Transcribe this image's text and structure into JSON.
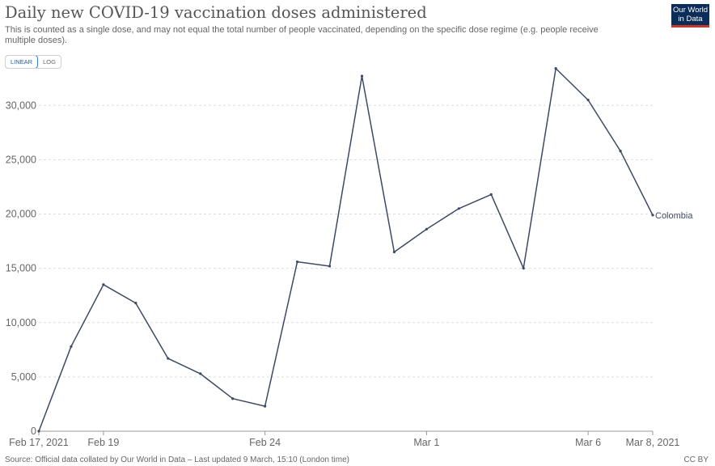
{
  "header": {
    "title": "Daily new COVID-19 vaccination doses administered",
    "subtitle": "This is counted as a single dose, and may not equal the total number of people vaccinated, depending on the specific dose regime (e.g. people receive multiple doses).",
    "logo_line1": "Our World",
    "logo_line2": "in Data"
  },
  "controls": {
    "linear_label": "LINEAR",
    "log_label": "LOG",
    "active": "linear"
  },
  "footer": {
    "source": "Source: Official data collated by Our World in Data – Last updated 9 March, 15:10 (London time)",
    "license": "CC BY"
  },
  "colors": {
    "line": "#3d4a63",
    "grid": "#dddddd",
    "axis_text": "#666666"
  },
  "chart_data": {
    "type": "line",
    "title": "Daily new COVID-19 vaccination doses administered",
    "xlabel": "",
    "ylabel": "",
    "ylim": [
      0,
      33000
    ],
    "yticks": [
      0,
      5000,
      10000,
      15000,
      20000,
      25000,
      30000
    ],
    "ytick_labels": [
      "0",
      "5,000",
      "10,000",
      "15,000",
      "20,000",
      "25,000",
      "30,000"
    ],
    "x": [
      "Feb 17, 2021",
      "Feb 18, 2021",
      "Feb 19, 2021",
      "Feb 20, 2021",
      "Feb 21, 2021",
      "Feb 22, 2021",
      "Feb 23, 2021",
      "Feb 24, 2021",
      "Feb 25, 2021",
      "Feb 26, 2021",
      "Feb 27, 2021",
      "Feb 28, 2021",
      "Mar 1, 2021",
      "Mar 2, 2021",
      "Mar 3, 2021",
      "Mar 4, 2021",
      "Mar 5, 2021",
      "Mar 6, 2021",
      "Mar 7, 2021",
      "Mar 8, 2021"
    ],
    "xticks": [
      {
        "index": 0,
        "label": "Feb 17, 2021"
      },
      {
        "index": 2,
        "label": "Feb 19"
      },
      {
        "index": 7,
        "label": "Feb 24"
      },
      {
        "index": 12,
        "label": "Mar 1"
      },
      {
        "index": 17,
        "label": "Mar 6"
      },
      {
        "index": 19,
        "label": "Mar 8, 2021"
      }
    ],
    "series": [
      {
        "name": "Colombia",
        "values": [
          0,
          7800,
          13500,
          11800,
          6700,
          5300,
          3000,
          2300,
          15600,
          15200,
          32700,
          16500,
          18600,
          20500,
          21800,
          15000,
          33400,
          30500,
          25800,
          19900
        ]
      }
    ],
    "grid": true,
    "legend": "end-of-line label"
  }
}
